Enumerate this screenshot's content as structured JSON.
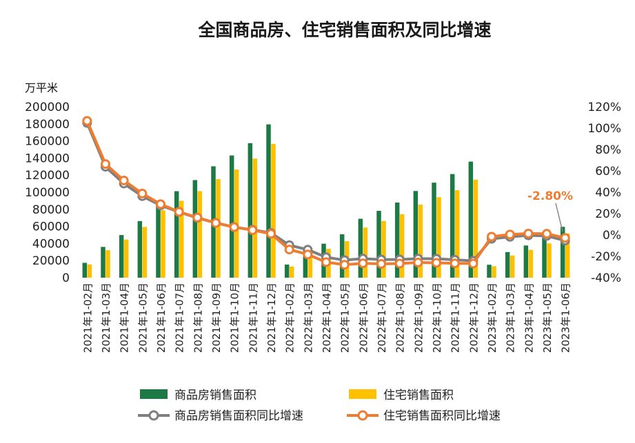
{
  "chart_data": {
    "type": "bar+line",
    "title": "全国商品房、住宅销售面积及同比增速",
    "unit_label": "万平米",
    "categories": [
      "2021年1-02月",
      "2021年1-03月",
      "2021年1-04月",
      "2021年1-05月",
      "2021年1-06月",
      "2021年1-07月",
      "2021年1-08月",
      "2021年1-09月",
      "2021年1-10月",
      "2021年1-11月",
      "2021年1-12月",
      "2022年1-02月",
      "2022年1-03月",
      "2022年1-04月",
      "2022年1-05月",
      "2022年1-06月",
      "2022年1-07月",
      "2022年1-08月",
      "2022年1-09月",
      "2022年1-10月",
      "2022年1-11月",
      "2022年1-12月",
      "2023年1-02月",
      "2023年1-03月",
      "2023年1-04月",
      "2023年1-05月",
      "2023年1-06月"
    ],
    "left_axis": {
      "min": 0,
      "max": 200000,
      "ticks": [
        "0",
        "20000",
        "40000",
        "60000",
        "80000",
        "100000",
        "120000",
        "140000",
        "160000",
        "180000",
        "200000"
      ]
    },
    "right_axis": {
      "min": -40,
      "max": 120,
      "ticks": [
        "-40%",
        "-20%",
        "0%",
        "20%",
        "40%",
        "60%",
        "80%",
        "100%",
        "120%"
      ]
    },
    "series": [
      {
        "name": "商品房销售面积",
        "kind": "bar",
        "axis": "left",
        "color": "#1e7a45",
        "values": [
          17363,
          36007,
          49883,
          66190,
          88635,
          101207,
          114193,
          130332,
          143041,
          157432,
          179433,
          15303,
          31046,
          39768,
          50738,
          68923,
          78178,
          87890,
          101422,
          111179,
          121250,
          135837,
          15133,
          29946,
          37636,
          46440,
          59515
        ]
      },
      {
        "name": "住宅销售面积",
        "kind": "bar",
        "axis": "left",
        "color": "#ffc000",
        "values": [
          15446,
          32136,
          44621,
          59355,
          78875,
          89918,
          101271,
          115326,
          126575,
          139341,
          156532,
          13003,
          26768,
          33755,
          42656,
          58666,
          66263,
          74227,
          85454,
          94185,
          102346,
          114631,
          13427,
          25880,
          32511,
          40045,
          51654
        ]
      },
      {
        "name": "商品房销售面积同比增速",
        "kind": "line",
        "axis": "right",
        "color": "#7f7f7f",
        "values": [
          104.9,
          63.8,
          48.1,
          36.3,
          27.7,
          21.5,
          15.9,
          11.3,
          7.3,
          4.8,
          1.9,
          -9.6,
          -13.8,
          -20.9,
          -23.6,
          -22.2,
          -23.1,
          -23.0,
          -22.2,
          -22.3,
          -23.3,
          -24.3,
          -3.6,
          -1.8,
          -0.4,
          -0.9,
          -5.3
        ]
      },
      {
        "name": "住宅销售面积同比增速",
        "kind": "line",
        "axis": "right",
        "color": "#ee7d31",
        "values": [
          106.8,
          66.4,
          51.0,
          38.8,
          28.8,
          21.6,
          16.3,
          11.2,
          7.3,
          4.5,
          1.1,
          -13.7,
          -18.3,
          -25.5,
          -27.9,
          -26.6,
          -27.1,
          -26.8,
          -25.8,
          -26.1,
          -26.6,
          -26.8,
          -1.6,
          0.4,
          1.3,
          1.1,
          -2.8
        ]
      }
    ],
    "annotation": {
      "text": "-2.80%",
      "series": "住宅销售面积同比增速",
      "index": 26
    },
    "legend_position": "bottom"
  }
}
